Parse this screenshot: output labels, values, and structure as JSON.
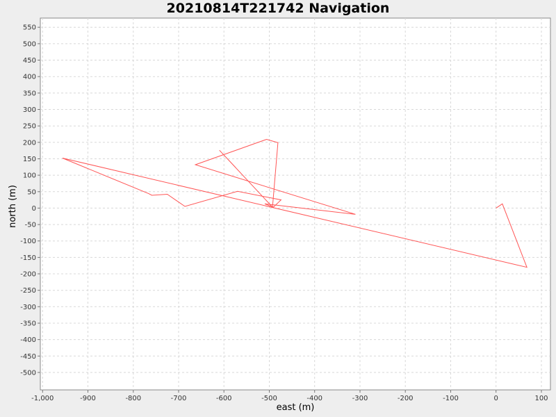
{
  "chart_data": {
    "type": "line",
    "title": "20210814T221742 Navigation",
    "xlabel": "east (m)",
    "ylabel": "north (m)",
    "xlim": [
      -1005,
      120
    ],
    "ylim": [
      -553,
      578
    ],
    "grid": true,
    "legend": "none",
    "x_ticks": [
      -1000,
      -900,
      -800,
      -700,
      -600,
      -500,
      -400,
      -300,
      -200,
      -100,
      0,
      100
    ],
    "x_tick_labels": [
      "-1,000",
      "-900",
      "-800",
      "-700",
      "-600",
      "-500",
      "-400",
      "-300",
      "-200",
      "-100",
      "0",
      "100"
    ],
    "y_ticks": [
      550,
      500,
      450,
      400,
      350,
      300,
      250,
      200,
      150,
      100,
      50,
      0,
      -50,
      -100,
      -150,
      -200,
      -250,
      -300,
      -350,
      -400,
      -450,
      -500
    ],
    "y_tick_labels": [
      "550",
      "500",
      "450",
      "400",
      "350",
      "300",
      "250",
      "200",
      "150",
      "100",
      "50",
      "0",
      "-50",
      "-100",
      "-150",
      "-200",
      "-250",
      "-300",
      "-350",
      "-400",
      "-450",
      "-500"
    ],
    "series": [
      {
        "color": "#ff5555",
        "x": [
          0,
          14,
          68,
          -956,
          -766,
          -759,
          -725,
          -686,
          -570,
          -474,
          -491,
          -510,
          -310,
          -663,
          -506,
          -481,
          -493,
          -610,
          -574
        ],
        "y": [
          0,
          13,
          -180,
          152,
          44,
          39,
          42,
          5,
          51,
          25,
          3,
          13,
          -19,
          132,
          209,
          199,
          3,
          176,
          123
        ]
      }
    ]
  }
}
